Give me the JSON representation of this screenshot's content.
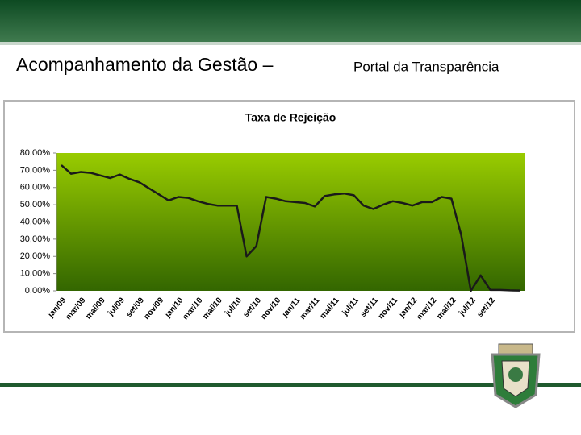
{
  "header": {
    "title_main": "Acompanhamento da Gestão –",
    "title_sub": "Portal da Transparência"
  },
  "chart_data": {
    "type": "line",
    "title": "Taxa de Rejeição",
    "categories": [
      "jan/09",
      null,
      "mar/09",
      null,
      "mai/09",
      null,
      "jul/09",
      null,
      "set/09",
      null,
      "nov/09",
      null,
      "jan/10",
      null,
      "mar/10",
      null,
      "mai/10",
      null,
      "jul/10",
      null,
      "set/10",
      null,
      "nov/10",
      null,
      "jan/11",
      null,
      "mar/11",
      null,
      "mai/11",
      null,
      "jul/11",
      null,
      "set/11",
      null,
      "nov/11",
      null,
      "jan/12",
      null,
      "mar/12",
      null,
      "mai/12",
      null,
      "jul/12",
      null,
      "set/12",
      null,
      null,
      null
    ],
    "values": [
      73,
      68,
      69,
      68.5,
      67,
      65.5,
      67.5,
      65,
      63,
      59.5,
      56,
      52.5,
      54.5,
      54,
      52,
      50.5,
      49.5,
      49.5,
      49.5,
      20,
      26,
      54.5,
      53.5,
      52,
      51.5,
      51,
      49,
      55,
      56,
      56.5,
      55.5,
      49.5,
      47.5,
      50,
      52,
      51,
      49.5,
      51.5,
      51.5,
      54.5,
      53.5,
      32.5,
      0,
      9,
      0.5,
      0.5,
      0.3,
      0.2
    ],
    "color": "#1a1a1a",
    "ylim": [
      0,
      80
    ],
    "yticks": [
      {
        "value": 0,
        "label": "0,00%"
      },
      {
        "value": 10,
        "label": "10,00%"
      },
      {
        "value": 20,
        "label": "20,00%"
      },
      {
        "value": 30,
        "label": "30,00%"
      },
      {
        "value": 40,
        "label": "40,00%"
      },
      {
        "value": 50,
        "label": "50,00%"
      },
      {
        "value": 60,
        "label": "60,00%"
      },
      {
        "value": 70,
        "label": "70,00%"
      },
      {
        "value": 80,
        "label": "80,00%"
      }
    ],
    "grid": false
  }
}
